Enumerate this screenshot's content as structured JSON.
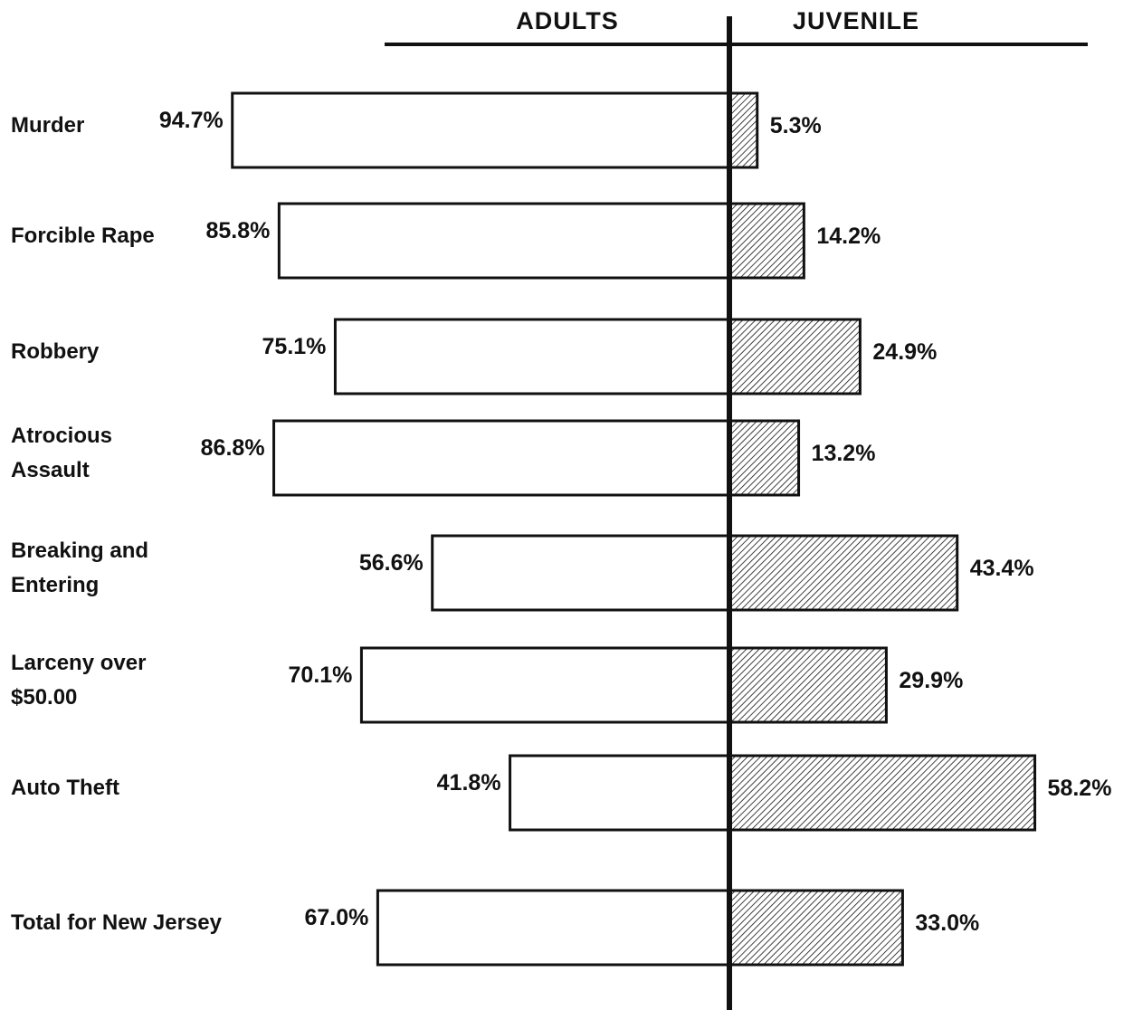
{
  "chart_data": {
    "type": "bar",
    "orientation": "horizontal-diverging",
    "headers": {
      "left": "ADULTS",
      "right": "JUVENILE"
    },
    "categories": [
      [
        "Murder"
      ],
      [
        "Forcible Rape"
      ],
      [
        "Robbery"
      ],
      [
        "Atrocious",
        "Assault"
      ],
      [
        "Breaking and",
        "Entering"
      ],
      [
        "Larceny over",
        "$50.00"
      ],
      [
        "Auto Theft"
      ],
      [
        "Total for New Jersey"
      ]
    ],
    "series": [
      {
        "name": "ADULTS",
        "values": [
          94.7,
          85.8,
          75.1,
          86.8,
          56.6,
          70.1,
          41.8,
          67.0
        ],
        "labels": [
          "94.7%",
          "85.8%",
          "75.1%",
          "86.8%",
          "56.6%",
          "70.1%",
          "41.8%",
          "67.0%"
        ],
        "fill": "#ffffff"
      },
      {
        "name": "JUVENILE",
        "values": [
          5.3,
          14.2,
          24.9,
          13.2,
          43.4,
          29.9,
          58.2,
          33.0
        ],
        "labels": [
          "5.3%",
          "14.2%",
          "24.9%",
          "13.2%",
          "43.4%",
          "29.9%",
          "58.2%",
          "33.0%"
        ],
        "fill": "hatched"
      }
    ],
    "unit": "%",
    "xlim": [
      0,
      100
    ],
    "grid": false,
    "legend": "none",
    "colors": {
      "stroke": "#111111",
      "adult_fill": "#ffffff",
      "hatch": "#111111"
    }
  }
}
